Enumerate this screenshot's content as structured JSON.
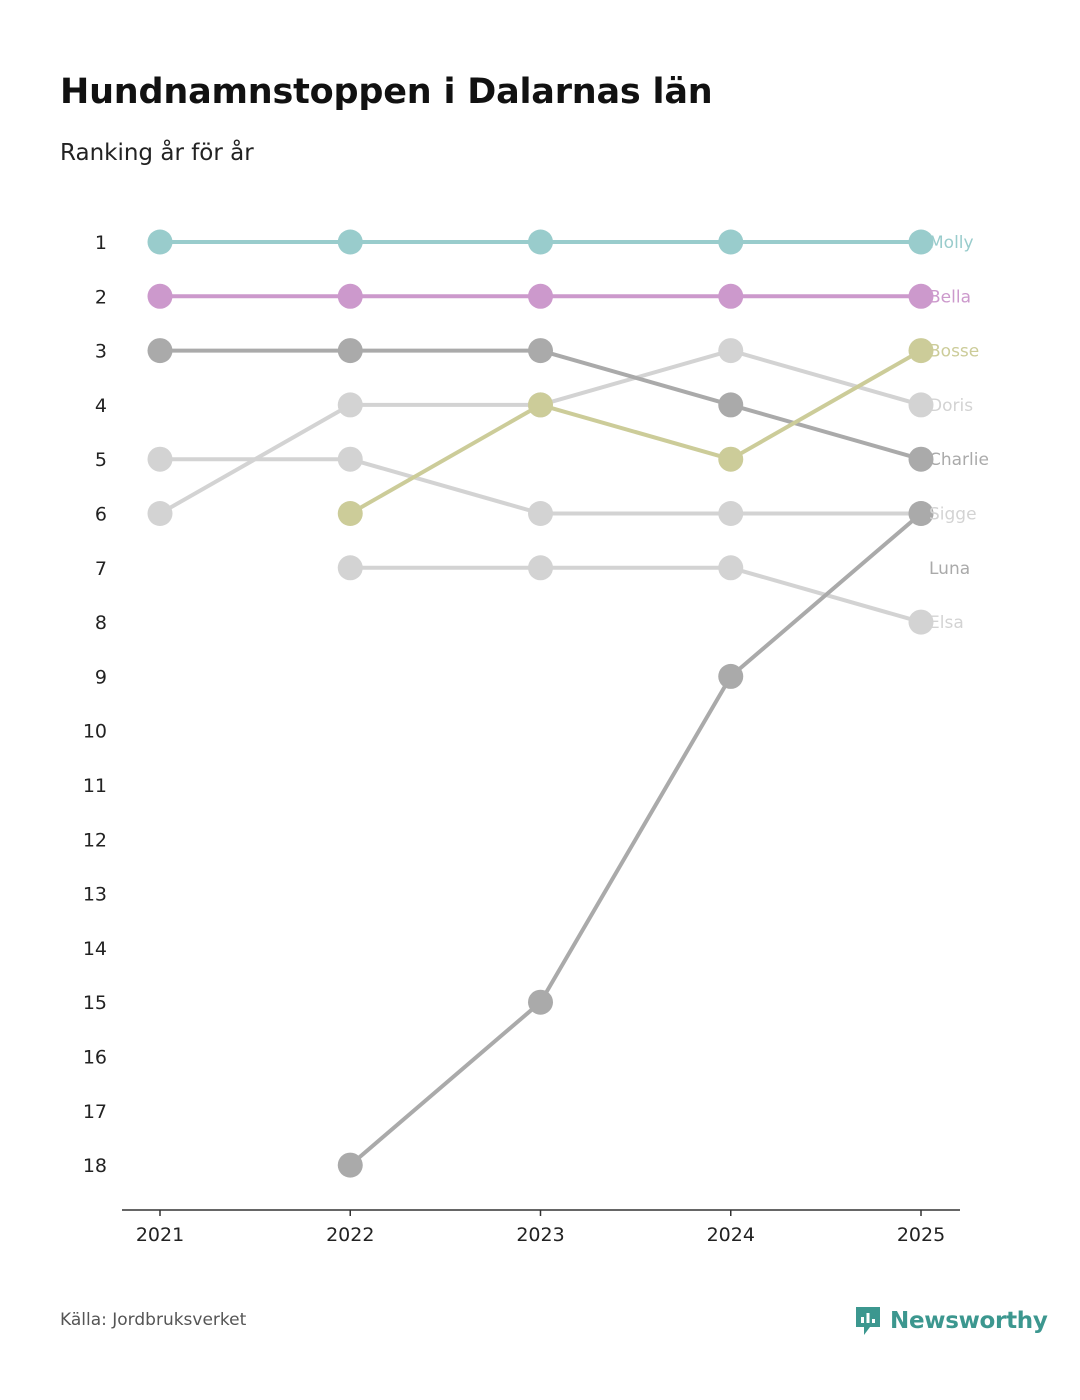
{
  "title": "Hundnamnstoppen i Dalarnas län",
  "subtitle": "Ranking år för år",
  "source": "Källa: Jordbruksverket",
  "brand": {
    "name": "Newsworthy",
    "icon": "newsworthy-logo-icon",
    "color": "#3c978f"
  },
  "chart_data": {
    "type": "line",
    "subtype": "bump",
    "title": "Hundnamnstoppen i Dalarnas län",
    "subtitle": "Ranking år för år",
    "xlabel": "",
    "ylabel": "",
    "categories": [
      "2021",
      "2022",
      "2023",
      "2024",
      "2025"
    ],
    "yticks": [
      "1",
      "2",
      "3",
      "4",
      "5",
      "6",
      "7",
      "8",
      "9",
      "10",
      "11",
      "12",
      "13",
      "14",
      "15",
      "16",
      "17",
      "18"
    ],
    "ylim": [
      1,
      18
    ],
    "y_inverted": true,
    "series": [
      {
        "name": "Molly",
        "color": "#99cccc",
        "values": [
          1,
          1,
          1,
          1,
          1
        ]
      },
      {
        "name": "Bella",
        "color": "#cc99cc",
        "values": [
          2,
          2,
          2,
          2,
          2
        ]
      },
      {
        "name": "Charlie",
        "color": "#aaaaaa",
        "values": [
          3,
          3,
          3,
          4,
          5
        ]
      },
      {
        "name": "Doris",
        "color": "#d3d3d3",
        "values": [
          6,
          4,
          4,
          3,
          4
        ]
      },
      {
        "name": "Sigge",
        "color": "#d3d3d3",
        "values": [
          5,
          5,
          6,
          6,
          6
        ]
      },
      {
        "name": "Elsa",
        "color": "#d3d3d3",
        "values": [
          null,
          7,
          7,
          7,
          8
        ]
      },
      {
        "name": "Bosse",
        "color": "#cccc99",
        "values": [
          null,
          6,
          4,
          5,
          3
        ]
      },
      {
        "name": "Luna",
        "color": "#aaaaaa",
        "values": [
          null,
          18,
          15,
          9,
          6
        ]
      }
    ],
    "end_labels": [
      {
        "name": "Molly",
        "color": "#99cccc",
        "rank": 1
      },
      {
        "name": "Bella",
        "color": "#cc99cc",
        "rank": 2
      },
      {
        "name": "Bosse",
        "color": "#cccc99",
        "rank": 3
      },
      {
        "name": "Doris",
        "color": "#d3d3d3",
        "rank": 4
      },
      {
        "name": "Charlie",
        "color": "#aaaaaa",
        "rank": 5
      },
      {
        "name": "Sigge",
        "color": "#d3d3d3",
        "rank": 6
      },
      {
        "name": "Luna",
        "color": "#aaaaaa",
        "rank": 7
      },
      {
        "name": "Elsa",
        "color": "#d3d3d3",
        "rank": 8
      }
    ]
  }
}
